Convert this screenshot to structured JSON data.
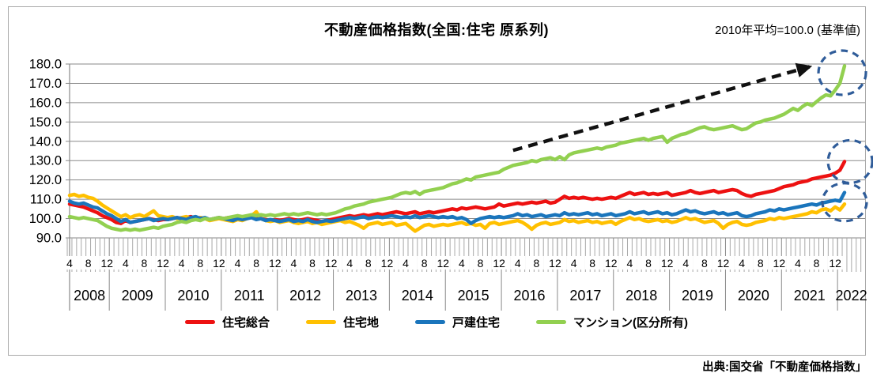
{
  "title": "不動産価格指数(全国:住宅 原系列)",
  "note": "2010年平均=100.0 (基準値)",
  "source": "出典:国交省「不動産価格指数」",
  "chart_data": {
    "type": "line",
    "x_unit": "month",
    "x_start": "2008-04",
    "x_end": "2022-02",
    "grid": true,
    "legend_position": "bottom",
    "ylim": [
      90,
      180
    ],
    "ytick_step": 10,
    "ytick_labels": [
      "90.0",
      "100.0",
      "110.0",
      "120.0",
      "130.0",
      "140.0",
      "150.0",
      "160.0",
      "170.0",
      "180.0"
    ],
    "month_ticks": [
      4,
      8,
      12
    ],
    "year_labels": [
      "2008",
      "2009",
      "2010",
      "2011",
      "2012",
      "2013",
      "2014",
      "2015",
      "2016",
      "2017",
      "2018",
      "2019",
      "2020",
      "2021",
      "2022"
    ],
    "axis_color": "#8a8a8a",
    "tick_color": "#a8a8a8",
    "series": [
      {
        "name": "住宅総合",
        "color": "#ed1111",
        "values": [
          107.5,
          107,
          106.5,
          106,
          105,
          104,
          103,
          101.5,
          100.5,
          99.5,
          98,
          97.5,
          99,
          98,
          98.5,
          99,
          99.5,
          100,
          99.5,
          99,
          99.5,
          99.5,
          100,
          100.5,
          100,
          100.5,
          101,
          100,
          100.5,
          100,
          99.5,
          100,
          100.5,
          100,
          100.5,
          100,
          99.5,
          100,
          100.5,
          101,
          100.5,
          100,
          99.5,
          99,
          99.5,
          99,
          99.5,
          100,
          99.5,
          99,
          99.5,
          100,
          99.5,
          99,
          98.5,
          99,
          99.5,
          100,
          100.5,
          101,
          101.5,
          101,
          101.5,
          102,
          101.5,
          102,
          102.5,
          102,
          102.5,
          103,
          103.5,
          103,
          102.5,
          103,
          103.5,
          102.5,
          103,
          103.5,
          103,
          103.5,
          104,
          104.5,
          105,
          104.5,
          105.5,
          105,
          105.5,
          106,
          105.5,
          105,
          105.5,
          106,
          107.5,
          106.5,
          107,
          107.5,
          108,
          107.5,
          108,
          108.5,
          108,
          108.5,
          109,
          108,
          108.5,
          110,
          111.5,
          110.5,
          111,
          110.5,
          111,
          110.5,
          110,
          110.5,
          110,
          110.5,
          111,
          110.5,
          111.5,
          112.5,
          113.5,
          112.5,
          113,
          113.5,
          112.5,
          113,
          112.5,
          113,
          113.5,
          112,
          112.5,
          113,
          113.5,
          114.5,
          113.5,
          113,
          113.5,
          114,
          114.5,
          113.5,
          114,
          114.5,
          115,
          114.5,
          113,
          112,
          111.5,
          112.5,
          113,
          113.5,
          114,
          114.5,
          115.5,
          116.5,
          117,
          117.5,
          118.5,
          119,
          119.5,
          120.5,
          121,
          121.5,
          122,
          122.5,
          123.5,
          125,
          129.5
        ]
      },
      {
        "name": "住宅地",
        "color": "#ffc000",
        "values": [
          112,
          112.5,
          111.5,
          112,
          111,
          110.5,
          109,
          107,
          105.5,
          104,
          102.5,
          101,
          102,
          100.5,
          101.5,
          102,
          101,
          102.5,
          104,
          101.5,
          101,
          100.5,
          101,
          100,
          100.5,
          101,
          100,
          99.5,
          100.5,
          100,
          99,
          99.5,
          100,
          99.5,
          99,
          98.5,
          99.5,
          99,
          100,
          101.5,
          103.5,
          100,
          99,
          98.5,
          99,
          98,
          98.5,
          99,
          98,
          97.5,
          98,
          98.5,
          97.5,
          98,
          97,
          97.5,
          98,
          98.5,
          99,
          98,
          98.5,
          97.5,
          96.5,
          95,
          97,
          97.5,
          98,
          97,
          97.5,
          98,
          96.5,
          97,
          97.5,
          95.5,
          93.5,
          95,
          96.5,
          97,
          96,
          96.5,
          97,
          96.5,
          97,
          97.5,
          98,
          97,
          97.5,
          96.5,
          97,
          95,
          97.5,
          98,
          97,
          97.5,
          98,
          98.5,
          99,
          98,
          96.5,
          94.5,
          96.5,
          97.5,
          98,
          97,
          97.5,
          98,
          99.5,
          98.5,
          99,
          98,
          98.5,
          99,
          98,
          98.5,
          97.5,
          98,
          98.5,
          97,
          98.5,
          99.5,
          100.5,
          99.5,
          100,
          99,
          98.5,
          99,
          99.5,
          98.5,
          99,
          98,
          98.5,
          99.5,
          100.5,
          99.5,
          100,
          99,
          98,
          98.5,
          99,
          97.5,
          95,
          97,
          98,
          98.5,
          97,
          96.5,
          97,
          98,
          98.5,
          99,
          100,
          99.5,
          100.5,
          100,
          100.5,
          101,
          101.5,
          102,
          102.5,
          103.5,
          103,
          104.5,
          105,
          104,
          106,
          104.5,
          107.5
        ]
      },
      {
        "name": "戸建住宅",
        "color": "#1a75bc",
        "values": [
          109,
          108,
          107.5,
          108,
          107,
          106,
          105.5,
          104,
          102.5,
          101.5,
          100,
          98.5,
          99.5,
          98,
          98.5,
          99,
          99.5,
          100,
          99,
          99.5,
          100,
          99.5,
          100,
          100.5,
          100,
          99.5,
          100.5,
          101,
          100,
          100.5,
          99.5,
          100,
          100.5,
          100,
          99.5,
          99,
          100,
          99.5,
          100,
          100.5,
          99.5,
          100,
          99,
          99.5,
          99,
          98.5,
          99,
          99.5,
          98.5,
          99,
          98.5,
          99.5,
          98.5,
          98,
          98.5,
          99,
          98.5,
          99,
          99.5,
          100,
          100.5,
          100,
          100.5,
          101,
          100,
          100.5,
          101,
          100.5,
          101,
          101.5,
          101,
          100.5,
          101,
          100.5,
          101.5,
          100.5,
          101,
          101.5,
          101,
          100.5,
          101,
          100.5,
          101,
          100,
          100.5,
          99.5,
          97.5,
          99,
          100,
          100.5,
          101,
          100.5,
          101,
          100.5,
          101,
          101.5,
          102.5,
          101.5,
          102,
          101,
          101.5,
          102,
          101,
          101.5,
          102,
          101.5,
          103,
          102,
          102.5,
          102,
          102.5,
          103,
          102,
          102.5,
          101.5,
          102,
          102.5,
          101.5,
          102,
          102.5,
          103.5,
          102.5,
          103,
          103.5,
          102.5,
          103,
          103.5,
          102.5,
          103,
          102,
          102.5,
          103.5,
          104.5,
          103.5,
          104,
          103,
          102.5,
          103,
          103.5,
          102.5,
          103,
          102,
          102.5,
          103,
          101.5,
          101,
          101.5,
          102.5,
          103,
          103.5,
          104.5,
          104,
          105,
          104.5,
          105,
          105.5,
          106,
          106.5,
          107,
          107.5,
          107,
          108,
          108.5,
          109,
          109.5,
          109,
          113.5
        ]
      },
      {
        "name": "マンション(区分所有)",
        "color": "#92d050",
        "values": [
          101,
          100.5,
          100,
          100.5,
          100,
          99.5,
          99,
          97.5,
          96,
          95,
          94.5,
          94,
          94.5,
          94,
          94.5,
          94,
          94.5,
          95,
          95.5,
          95,
          96,
          96.5,
          97,
          98,
          98.5,
          98,
          99,
          99.5,
          99,
          100,
          99.5,
          100,
          100.5,
          100,
          100.5,
          101,
          101.5,
          101,
          101.5,
          102,
          101.5,
          102,
          101.5,
          102,
          101.5,
          102,
          102.5,
          102,
          102.5,
          102,
          102.5,
          103,
          102.5,
          102,
          102.5,
          102,
          102.5,
          103,
          104,
          105,
          105.5,
          106.5,
          107,
          107.5,
          108.5,
          109,
          109.5,
          110,
          110.5,
          111,
          112,
          113,
          113.5,
          113,
          114,
          112.5,
          114,
          114.5,
          115,
          115.5,
          116,
          117,
          118,
          118.5,
          119.5,
          120.5,
          120,
          121.5,
          122,
          122.5,
          123,
          123.5,
          124,
          125.5,
          126.5,
          127.5,
          128,
          128.5,
          129,
          130,
          129.5,
          130.5,
          131,
          131.5,
          130.5,
          132,
          130.5,
          133,
          134,
          134.5,
          135,
          135.5,
          136,
          136.5,
          136,
          137,
          137.5,
          138,
          139,
          139.5,
          140,
          140.5,
          141,
          141.5,
          140.5,
          141.5,
          142,
          142.5,
          139.5,
          141.5,
          142.5,
          143.5,
          144,
          145,
          146,
          147,
          147.5,
          146.5,
          146,
          146.5,
          147,
          147.5,
          148,
          147,
          146,
          146.5,
          148,
          149.5,
          150,
          151,
          151.5,
          152,
          153,
          154,
          155.5,
          157,
          156,
          158,
          159.5,
          158.5,
          160.5,
          162.5,
          164,
          163.5,
          166.5,
          170,
          179
        ]
      }
    ],
    "annotations": {
      "arrow": {
        "color": "#111111",
        "from_index": 95,
        "from_value": 135.3,
        "to_index": 158.5,
        "to_value": 178.6
      },
      "circles": {
        "color": "#2f5c99",
        "items": [
          {
            "index": 165.5,
            "value": 175.5,
            "rx": 30,
            "ry": 28
          },
          {
            "index": 167.2,
            "value": 129.5,
            "rx": 28,
            "ry": 27
          },
          {
            "index": 166.0,
            "value": 108.5,
            "rx": 28,
            "ry": 24
          }
        ]
      }
    }
  }
}
